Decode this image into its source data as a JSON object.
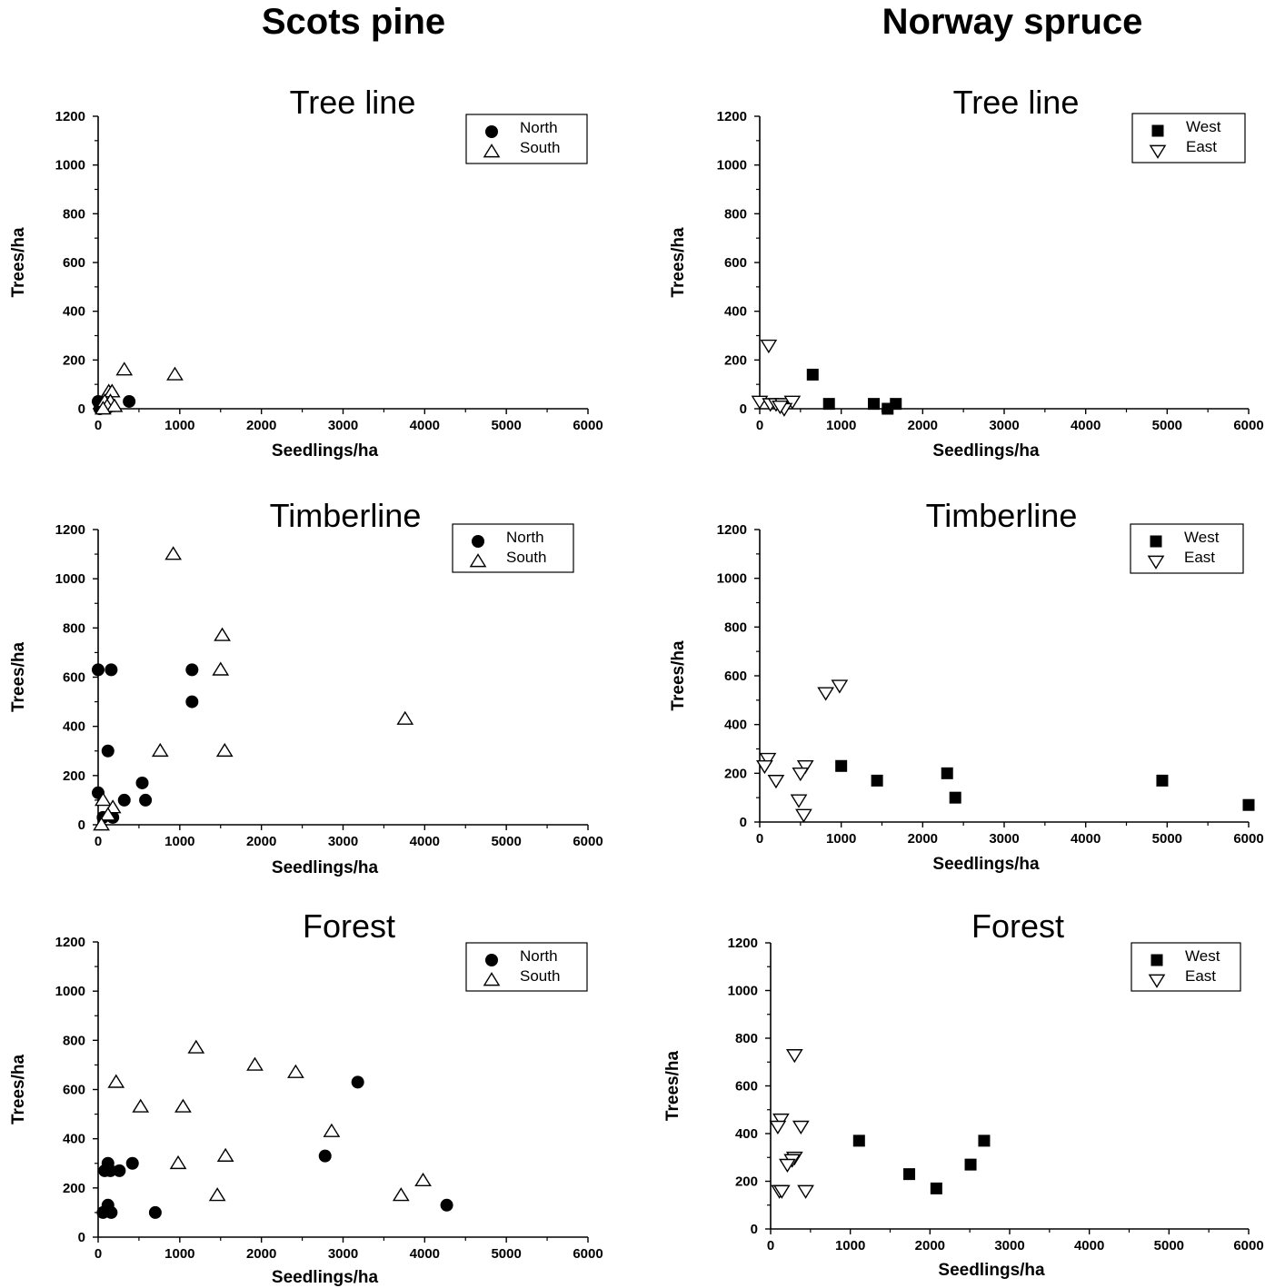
{
  "columns": [
    {
      "title": "Scots pine"
    },
    {
      "title": "Norway spruce"
    }
  ],
  "chart_data": [
    {
      "type": "scatter",
      "column": "Scots pine",
      "title": "Tree line",
      "xlabel": "Seedlings/ha",
      "ylabel": "Trees/ha",
      "xlim": [
        0,
        6000
      ],
      "ylim": [
        0,
        1200
      ],
      "xticks": [
        0,
        1000,
        2000,
        3000,
        4000,
        5000,
        6000
      ],
      "yticks": [
        0,
        200,
        400,
        600,
        800,
        1000,
        1200
      ],
      "legend_position": "top-right",
      "series": [
        {
          "name": "North",
          "marker": "circle",
          "points": [
            [
              0,
              30
            ],
            [
              20,
              0
            ],
            [
              60,
              10
            ],
            [
              380,
              30
            ],
            [
              120,
              5
            ]
          ]
        },
        {
          "name": "South",
          "marker": "triangle-up",
          "points": [
            [
              320,
              160
            ],
            [
              940,
              140
            ],
            [
              130,
              70
            ],
            [
              170,
              70
            ],
            [
              80,
              30
            ],
            [
              150,
              30
            ],
            [
              110,
              10
            ],
            [
              200,
              10
            ],
            [
              60,
              0
            ]
          ]
        }
      ]
    },
    {
      "type": "scatter",
      "column": "Norway spruce",
      "title": "Tree line",
      "xlabel": "Seedlings/ha",
      "ylabel": "Trees/ha",
      "xlim": [
        0,
        6000
      ],
      "ylim": [
        0,
        1200
      ],
      "xticks": [
        0,
        1000,
        2000,
        3000,
        4000,
        5000,
        6000
      ],
      "yticks": [
        0,
        200,
        400,
        600,
        800,
        1000,
        1200
      ],
      "legend_position": "top-right",
      "series": [
        {
          "name": "West",
          "marker": "square",
          "points": [
            [
              650,
              140
            ],
            [
              850,
              20
            ],
            [
              1400,
              20
            ],
            [
              1570,
              0
            ],
            [
              1670,
              20
            ]
          ]
        },
        {
          "name": "East",
          "marker": "triangle-down",
          "points": [
            [
              110,
              260
            ],
            [
              0,
              30
            ],
            [
              130,
              20
            ],
            [
              200,
              20
            ],
            [
              280,
              20
            ],
            [
              400,
              30
            ],
            [
              300,
              0
            ],
            [
              250,
              10
            ]
          ]
        }
      ]
    },
    {
      "type": "scatter",
      "column": "Scots pine",
      "title": "Timberline",
      "xlabel": "Seedlings/ha",
      "ylabel": "Trees/ha",
      "xlim": [
        0,
        6000
      ],
      "ylim": [
        0,
        1200
      ],
      "xticks": [
        0,
        1000,
        2000,
        3000,
        4000,
        5000,
        6000
      ],
      "yticks": [
        0,
        200,
        400,
        600,
        800,
        1000,
        1200
      ],
      "legend_position": "top-right",
      "series": [
        {
          "name": "North",
          "marker": "circle",
          "points": [
            [
              0,
              630
            ],
            [
              160,
              630
            ],
            [
              1150,
              630
            ],
            [
              1150,
              500
            ],
            [
              120,
              300
            ],
            [
              540,
              170
            ],
            [
              0,
              130
            ],
            [
              580,
              100
            ],
            [
              320,
              100
            ],
            [
              60,
              30
            ],
            [
              180,
              30
            ]
          ]
        },
        {
          "name": "South",
          "marker": "triangle-up",
          "points": [
            [
              920,
              1100
            ],
            [
              1520,
              770
            ],
            [
              1500,
              630
            ],
            [
              3760,
              430
            ],
            [
              760,
              300
            ],
            [
              1550,
              300
            ],
            [
              60,
              100
            ],
            [
              180,
              70
            ],
            [
              120,
              40
            ],
            [
              40,
              0
            ]
          ]
        }
      ]
    },
    {
      "type": "scatter",
      "column": "Norway spruce",
      "title": "Timberline",
      "xlabel": "Seedlings/ha",
      "ylabel": "Trees/ha",
      "xlim": [
        0,
        6000
      ],
      "ylim": [
        0,
        1200
      ],
      "xticks": [
        0,
        1000,
        2000,
        3000,
        4000,
        5000,
        6000
      ],
      "yticks": [
        0,
        200,
        400,
        600,
        800,
        1000,
        1200
      ],
      "legend_position": "top-right",
      "series": [
        {
          "name": "West",
          "marker": "square",
          "points": [
            [
              1000,
              230
            ],
            [
              1440,
              170
            ],
            [
              2300,
              200
            ],
            [
              2400,
              100
            ],
            [
              4940,
              170
            ],
            [
              6000,
              70
            ]
          ]
        },
        {
          "name": "East",
          "marker": "triangle-down",
          "points": [
            [
              980,
              560
            ],
            [
              810,
              530
            ],
            [
              100,
              260
            ],
            [
              60,
              230
            ],
            [
              560,
              230
            ],
            [
              500,
              200
            ],
            [
              200,
              170
            ],
            [
              480,
              90
            ],
            [
              540,
              30
            ]
          ]
        }
      ]
    },
    {
      "type": "scatter",
      "column": "Scots pine",
      "title": "Forest",
      "xlabel": "Seedlings/ha",
      "ylabel": "Trees/ha",
      "xlim": [
        0,
        6000
      ],
      "ylim": [
        0,
        1200
      ],
      "xticks": [
        0,
        1000,
        2000,
        3000,
        4000,
        5000,
        6000
      ],
      "yticks": [
        0,
        200,
        400,
        600,
        800,
        1000,
        1200
      ],
      "legend_position": "top-right",
      "series": [
        {
          "name": "North",
          "marker": "circle",
          "points": [
            [
              3180,
              630
            ],
            [
              2780,
              330
            ],
            [
              4270,
              130
            ],
            [
              120,
              300
            ],
            [
              420,
              300
            ],
            [
              80,
              270
            ],
            [
              150,
              270
            ],
            [
              260,
              270
            ],
            [
              120,
              130
            ],
            [
              60,
              100
            ],
            [
              160,
              100
            ],
            [
              700,
              100
            ]
          ]
        },
        {
          "name": "South",
          "marker": "triangle-up",
          "points": [
            [
              1200,
              770
            ],
            [
              1920,
              700
            ],
            [
              2420,
              670
            ],
            [
              220,
              630
            ],
            [
              520,
              530
            ],
            [
              1040,
              530
            ],
            [
              2860,
              430
            ],
            [
              1560,
              330
            ],
            [
              980,
              300
            ],
            [
              3980,
              230
            ],
            [
              1460,
              170
            ],
            [
              3710,
              170
            ]
          ]
        }
      ]
    },
    {
      "type": "scatter",
      "column": "Norway spruce",
      "title": "Forest",
      "xlabel": "Seedlings/ha",
      "ylabel": "Trees/ha",
      "xlim": [
        0,
        6000
      ],
      "ylim": [
        0,
        1200
      ],
      "xticks": [
        0,
        1000,
        2000,
        3000,
        4000,
        5000,
        6000
      ],
      "yticks": [
        0,
        200,
        400,
        600,
        800,
        1000,
        1200
      ],
      "legend_position": "top-right",
      "series": [
        {
          "name": "West",
          "marker": "square",
          "points": [
            [
              1110,
              370
            ],
            [
              2680,
              370
            ],
            [
              2510,
              270
            ],
            [
              1740,
              230
            ],
            [
              2080,
              170
            ]
          ]
        },
        {
          "name": "East",
          "marker": "triangle-down",
          "points": [
            [
              300,
              730
            ],
            [
              130,
              460
            ],
            [
              90,
              430
            ],
            [
              380,
              430
            ],
            [
              300,
              300
            ],
            [
              270,
              290
            ],
            [
              210,
              270
            ],
            [
              110,
              160
            ],
            [
              140,
              160
            ],
            [
              440,
              160
            ]
          ]
        }
      ]
    }
  ]
}
